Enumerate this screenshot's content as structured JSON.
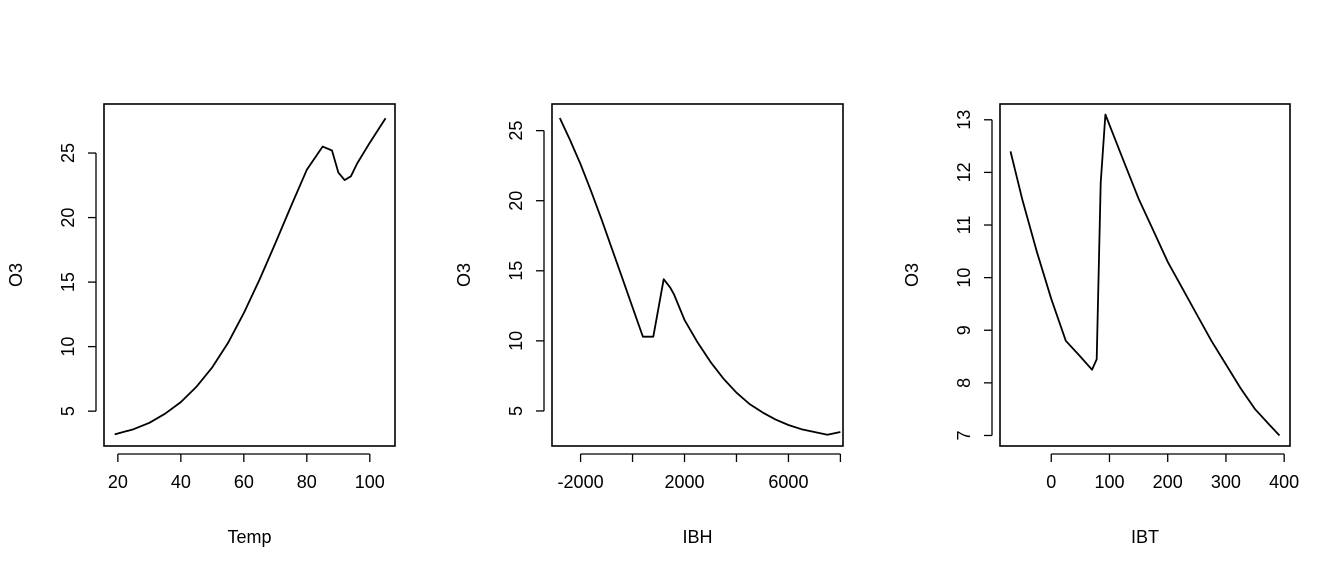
{
  "chart_data": [
    {
      "type": "line",
      "title": "",
      "xlabel": "Temp",
      "ylabel": "O3",
      "xlim": [
        15.6,
        108
      ],
      "ylim": [
        2.3,
        28.8
      ],
      "x_ticks": [
        20,
        40,
        60,
        80,
        100
      ],
      "y_ticks": [
        5,
        10,
        15,
        20,
        25
      ],
      "series": [
        {
          "x": [
            19,
            25,
            30,
            35,
            40,
            45,
            50,
            55,
            60,
            65,
            70,
            75,
            80,
            85,
            88,
            90,
            92,
            94,
            96,
            100,
            105
          ],
          "y": [
            3.2,
            3.6,
            4.1,
            4.8,
            5.7,
            6.9,
            8.4,
            10.3,
            12.6,
            15.2,
            18.0,
            20.9,
            23.7,
            25.5,
            25.2,
            23.5,
            22.9,
            23.2,
            24.2,
            25.8,
            27.7
          ]
        }
      ]
    },
    {
      "type": "line",
      "title": "",
      "xlabel": "IBH",
      "ylabel": "O3",
      "xlim": [
        -3100,
        8100
      ],
      "ylim": [
        2.5,
        26.9
      ],
      "x_ticks": [
        -2000,
        0,
        2000,
        4000,
        6000,
        8000
      ],
      "x_tick_labels": [
        "-2000",
        "",
        "2000",
        "",
        "6000",
        ""
      ],
      "y_ticks": [
        5,
        10,
        15,
        20,
        25
      ],
      "series": [
        {
          "x": [
            -2800,
            -2400,
            -2000,
            -1600,
            -1200,
            -800,
            -400,
            0,
            400,
            800,
            1200,
            1450,
            1600,
            2000,
            2500,
            3000,
            3500,
            4000,
            4500,
            5000,
            5500,
            6000,
            6500,
            7000,
            7500,
            8000
          ],
          "y": [
            25.9,
            24.3,
            22.6,
            20.7,
            18.7,
            16.6,
            14.5,
            12.4,
            10.3,
            10.3,
            14.4,
            13.8,
            13.3,
            11.5,
            9.9,
            8.5,
            7.3,
            6.3,
            5.5,
            4.9,
            4.4,
            4.0,
            3.7,
            3.5,
            3.3,
            3.5
          ]
        }
      ]
    },
    {
      "type": "line",
      "title": "",
      "xlabel": "IBT",
      "ylabel": "O3",
      "xlim": [
        -88,
        410
      ],
      "ylim": [
        6.8,
        13.3
      ],
      "x_ticks": [
        0,
        100,
        200,
        300,
        400
      ],
      "y_ticks": [
        7,
        8,
        9,
        10,
        11,
        12,
        13
      ],
      "series": [
        {
          "x": [
            -70,
            -50,
            -25,
            0,
            25,
            50,
            70,
            78,
            85,
            93,
            100,
            125,
            150,
            175,
            200,
            225,
            250,
            275,
            300,
            325,
            350,
            375,
            392
          ],
          "y": [
            12.4,
            11.5,
            10.5,
            9.6,
            8.8,
            8.5,
            8.25,
            8.45,
            11.8,
            13.1,
            12.9,
            12.2,
            11.5,
            10.9,
            10.3,
            9.8,
            9.3,
            8.8,
            8.35,
            7.9,
            7.5,
            7.2,
            7.0
          ]
        }
      ]
    }
  ]
}
